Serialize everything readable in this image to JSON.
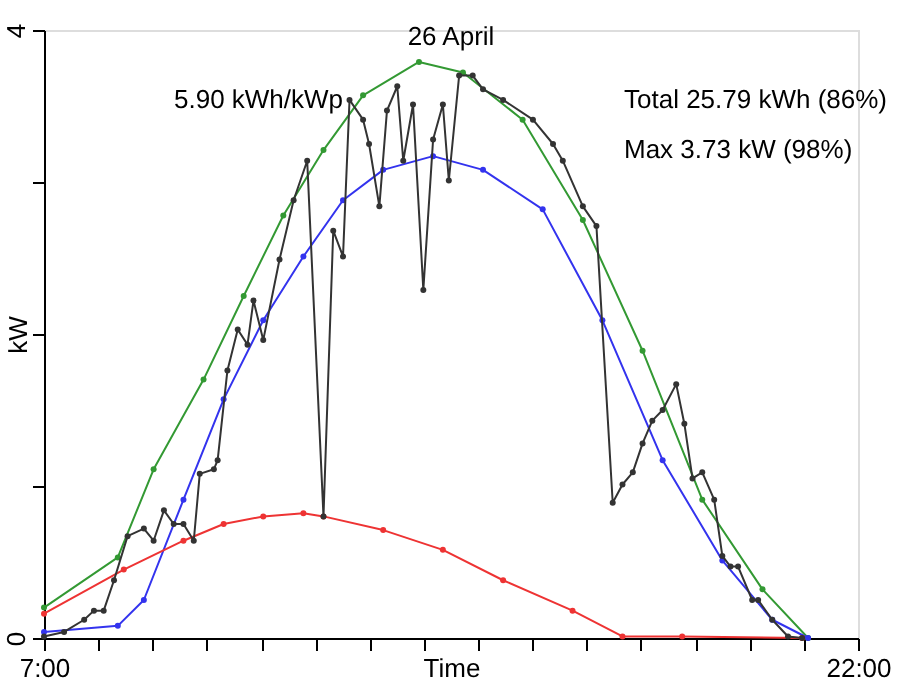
{
  "chart_data": {
    "type": "line",
    "title": "26 April",
    "xlabel": "Time",
    "ylabel": "kW",
    "xlim": [
      7,
      22
    ],
    "ylim": [
      0,
      4
    ],
    "xticks": [
      {
        "value": 7,
        "label": "7:00"
      },
      {
        "value": 8,
        "label": null
      },
      {
        "value": 9,
        "label": null
      },
      {
        "value": 10,
        "label": null
      },
      {
        "value": 11,
        "label": null
      },
      {
        "value": 12,
        "label": null
      },
      {
        "value": 13,
        "label": null
      },
      {
        "value": 14,
        "label": null
      },
      {
        "value": 15,
        "label": null
      },
      {
        "value": 16,
        "label": null
      },
      {
        "value": 17,
        "label": null
      },
      {
        "value": 18,
        "label": null
      },
      {
        "value": 19,
        "label": null
      },
      {
        "value": 20,
        "label": null
      },
      {
        "value": 21,
        "label": null
      },
      {
        "value": 22,
        "label": "22:00"
      }
    ],
    "yticks": [
      0,
      {
        "value": 1,
        "label": null
      },
      {
        "value": 2,
        "label": null
      },
      {
        "value": 3,
        "label": null
      },
      4
    ],
    "grid": false,
    "marker": "circle",
    "line_style": "solid",
    "annotations": [
      "5.90 kWh/kWp",
      "Total 25.79 kWh (86%)",
      "Max 3.73 kW (98%)"
    ],
    "series": [
      {
        "color": "#339933",
        "x": [
          7.0,
          8.36,
          9.02,
          9.94,
          10.68,
          11.41,
          12.15,
          12.88,
          13.91,
          14.72,
          15.82,
          16.93,
          18.03,
          19.13,
          20.24,
          21.08
        ],
        "values": [
          0.2,
          0.53,
          1.11,
          1.7,
          2.25,
          2.78,
          3.21,
          3.57,
          3.79,
          3.72,
          3.41,
          2.75,
          1.89,
          0.91,
          0.32,
          0
        ]
      },
      {
        "color": "#3333ee",
        "x": [
          7.0,
          8.36,
          8.84,
          9.57,
          10.31,
          11.04,
          11.78,
          12.51,
          13.25,
          14.17,
          15.09,
          16.19,
          17.29,
          18.4,
          19.5,
          20.42,
          21.08
        ],
        "values": [
          0.04,
          0.08,
          0.25,
          0.91,
          1.57,
          2.09,
          2.51,
          2.88,
          3.08,
          3.17,
          3.08,
          2.82,
          2.09,
          1.17,
          0.51,
          0.12,
          0
        ]
      },
      {
        "color": "#ee3333",
        "x": [
          7.0,
          8.47,
          9.57,
          10.31,
          11.04,
          11.78,
          12.15,
          13.25,
          14.35,
          15.46,
          16.74,
          17.66,
          18.76,
          20.97
        ],
        "values": [
          0.16,
          0.45,
          0.64,
          0.75,
          0.8,
          0.82,
          0.8,
          0.71,
          0.58,
          0.38,
          0.18,
          0.01,
          0.01,
          0
        ]
      },
      {
        "color": "#333333",
        "x": [
          7.0,
          7.37,
          7.74,
          7.92,
          8.1,
          8.29,
          8.54,
          8.84,
          9.02,
          9.21,
          9.39,
          9.57,
          9.76,
          9.87,
          10.13,
          10.2,
          10.38,
          10.57,
          10.75,
          10.86,
          11.04,
          11.34,
          11.6,
          11.85,
          12.15,
          12.33,
          12.51,
          12.63,
          12.88,
          12.99,
          13.18,
          13.32,
          13.51,
          13.62,
          13.8,
          13.99,
          14.17,
          14.35,
          14.46,
          14.65,
          14.9,
          15.09,
          15.46,
          16.01,
          16.38,
          16.56,
          16.93,
          17.18,
          17.48,
          17.66,
          17.85,
          18.03,
          18.21,
          18.4,
          18.65,
          18.8,
          18.95,
          19.13,
          19.35,
          19.5,
          19.65,
          19.79,
          20.05,
          20.16,
          20.42,
          20.71,
          20.97
        ],
        "values": [
          0.01,
          0.04,
          0.12,
          0.18,
          0.18,
          0.38,
          0.67,
          0.72,
          0.64,
          0.84,
          0.75,
          0.75,
          0.64,
          1.08,
          1.11,
          1.17,
          1.76,
          2.03,
          1.93,
          2.22,
          1.96,
          2.49,
          2.88,
          3.14,
          0.8,
          2.68,
          2.51,
          3.54,
          3.41,
          3.25,
          2.84,
          3.47,
          3.63,
          3.14,
          3.51,
          2.29,
          3.28,
          3.51,
          3.01,
          3.7,
          3.7,
          3.61,
          3.54,
          3.41,
          3.25,
          3.14,
          2.84,
          2.71,
          0.89,
          1.01,
          1.09,
          1.28,
          1.43,
          1.5,
          1.67,
          1.41,
          1.05,
          1.09,
          0.91,
          0.54,
          0.47,
          0.47,
          0.25,
          0.25,
          0.12,
          0.01,
          0
        ]
      }
    ]
  }
}
